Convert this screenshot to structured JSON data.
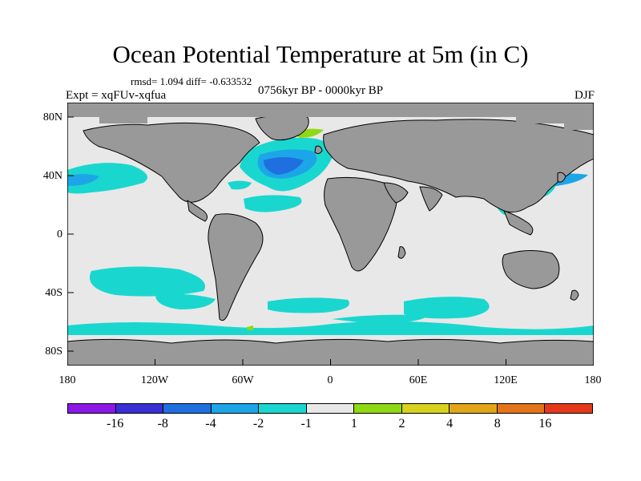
{
  "title": "Ocean Potential Temperature at 5m (in C)",
  "stats": "rmsd= 1.094 diff= -0.633532",
  "experiment": "Expt = xqFUv-xqfua",
  "period": "0756kyr BP - 0000kyr BP",
  "season": "DJF",
  "axes": {
    "lat_labels": [
      "80N",
      "40N",
      "0",
      "40S",
      "80S"
    ],
    "lon_labels": [
      "180",
      "120W",
      "60W",
      "0",
      "60E",
      "120E",
      "180"
    ]
  },
  "colorbar": {
    "colors": [
      "#8a18e6",
      "#3a2fd6",
      "#1f6fe0",
      "#1ca6e8",
      "#19d7cf",
      "#e8e8e8",
      "#8fd813",
      "#d9d21d",
      "#e2a51a",
      "#e3741a",
      "#e3391a"
    ],
    "labels": [
      "-16",
      "-8",
      "-4",
      "-2",
      "-1",
      "1",
      "2",
      "4",
      "8",
      "16"
    ]
  },
  "map_colors": {
    "ocean": "#e8e8e8",
    "land": "#999999",
    "cyan": "#19d7cf",
    "light_blue": "#1ca6e8",
    "blue": "#1f6fe0",
    "green": "#8fd813"
  }
}
